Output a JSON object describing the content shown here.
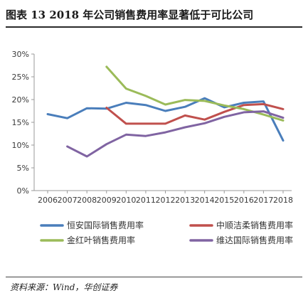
{
  "figure": {
    "title": "图表 13   2018 年公司销售费用率显著低于可比公司",
    "source": "资料来源：Wind，华创证券"
  },
  "chart_data": {
    "type": "line",
    "title": "",
    "xlabel": "",
    "ylabel": "",
    "x": [
      2006,
      2007,
      2008,
      2009,
      2010,
      2011,
      2012,
      2013,
      2014,
      2015,
      2016,
      2017,
      2018
    ],
    "ylim": [
      0,
      30
    ],
    "yticks": [
      "0%",
      "5%",
      "10%",
      "15%",
      "20%",
      "25%",
      "30%"
    ],
    "grid": false,
    "legend_position": "bottom",
    "series": [
      {
        "name": "恒安国际销售费用率",
        "color": "#4a7ebb",
        "values": [
          16.8,
          15.9,
          18.1,
          18.0,
          19.3,
          18.8,
          17.5,
          18.4,
          20.3,
          18.3,
          19.3,
          19.6,
          11.0
        ]
      },
      {
        "name": "中顺洁柔销售费用率",
        "color": "#c0504d",
        "values": [
          null,
          null,
          null,
          18.2,
          14.7,
          14.7,
          14.7,
          16.5,
          15.6,
          17.3,
          18.8,
          19.0,
          17.9
        ]
      },
      {
        "name": "金红叶销售费用率",
        "color": "#9bbb59",
        "values": [
          null,
          null,
          null,
          27.2,
          22.4,
          20.8,
          18.9,
          19.9,
          19.7,
          18.7,
          17.9,
          16.7,
          15.4
        ]
      },
      {
        "name": "维达国际销售费用率",
        "color": "#8064a2",
        "values": [
          null,
          9.7,
          7.5,
          10.2,
          12.3,
          12.0,
          12.8,
          13.9,
          14.8,
          16.2,
          17.2,
          17.4,
          16.0
        ]
      }
    ]
  }
}
